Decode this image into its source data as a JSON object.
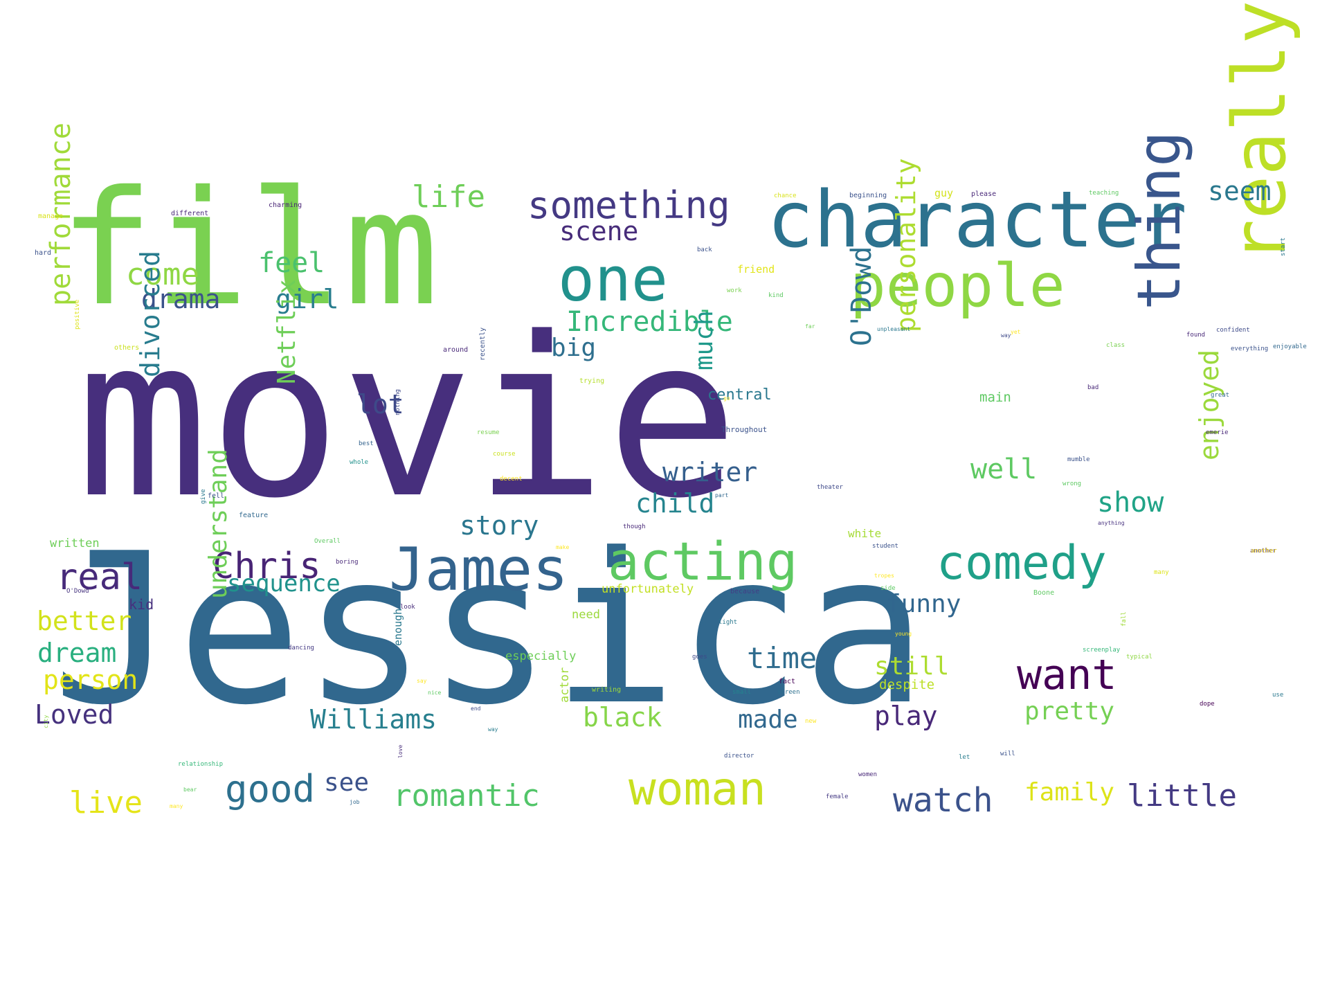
{
  "words": [
    {
      "text": "movie",
      "color": "#472f7d"
    },
    {
      "text": "Jessica",
      "color": "#31688e"
    },
    {
      "text": "film",
      "color": "#7ad151"
    },
    {
      "text": "character",
      "color": "#2c728e"
    },
    {
      "text": "one",
      "color": "#21918c"
    },
    {
      "text": "people",
      "color": "#8fd744"
    },
    {
      "text": "really",
      "color": "#bddf26"
    },
    {
      "text": "thing",
      "color": "#39568c"
    },
    {
      "text": "James",
      "color": "#33638d"
    },
    {
      "text": "acting",
      "color": "#5ec962"
    },
    {
      "text": "comedy",
      "color": "#1fa088"
    },
    {
      "text": "something",
      "color": "#443983"
    },
    {
      "text": "scene",
      "color": "#472c7a"
    },
    {
      "text": "life",
      "color": "#6ece58"
    },
    {
      "text": "seem",
      "color": "#2a788e"
    },
    {
      "text": "come",
      "color": "#8fd744"
    },
    {
      "text": "feel",
      "color": "#4ac16d"
    },
    {
      "text": "drama",
      "color": "#3b528b"
    },
    {
      "text": "girl",
      "color": "#287d8e"
    },
    {
      "text": "Incredible",
      "color": "#35b779"
    },
    {
      "text": "performance",
      "color": "#a0da39"
    },
    {
      "text": "big",
      "color": "#2e6f8e"
    },
    {
      "text": "lot",
      "color": "#3e4a89"
    },
    {
      "text": "divorced",
      "color": "#287c8e"
    },
    {
      "text": "Netflix",
      "color": "#6ece58"
    },
    {
      "text": "much",
      "color": "#1f998a"
    },
    {
      "text": "O'Dowd",
      "color": "#2c728e"
    },
    {
      "text": "personality",
      "color": "#addc30"
    },
    {
      "text": "central",
      "color": "#2a788e"
    },
    {
      "text": "writer",
      "color": "#355f8d"
    },
    {
      "text": "child",
      "color": "#25848e"
    },
    {
      "text": "well",
      "color": "#5ec962"
    },
    {
      "text": "show",
      "color": "#20a386"
    },
    {
      "text": "enjoyed",
      "color": "#9bd93c"
    },
    {
      "text": "story",
      "color": "#2a768e"
    },
    {
      "text": "Chris",
      "color": "#482475"
    },
    {
      "text": "real",
      "color": "#472a7a"
    },
    {
      "text": "sequence",
      "color": "#20928c"
    },
    {
      "text": "funny",
      "color": "#31668e"
    },
    {
      "text": "better",
      "color": "#d2e21b"
    },
    {
      "text": "dream",
      "color": "#29af7f"
    },
    {
      "text": "person",
      "color": "#e2e418"
    },
    {
      "text": "Loved",
      "color": "#46327e"
    },
    {
      "text": "understand",
      "color": "#6ece58"
    },
    {
      "text": "time",
      "color": "#2f6c8e"
    },
    {
      "text": "want",
      "color": "#440154"
    },
    {
      "text": "still",
      "color": "#addc30"
    },
    {
      "text": "Williams",
      "color": "#277f8e"
    },
    {
      "text": "black",
      "color": "#86d549"
    },
    {
      "text": "made",
      "color": "#31688e"
    },
    {
      "text": "play",
      "color": "#482878"
    },
    {
      "text": "pretty",
      "color": "#75d054"
    },
    {
      "text": "good",
      "color": "#2d708e"
    },
    {
      "text": "see",
      "color": "#3b528b"
    },
    {
      "text": "romantic",
      "color": "#52c569"
    },
    {
      "text": "woman",
      "color": "#c8e020"
    },
    {
      "text": "watch",
      "color": "#3b528b"
    },
    {
      "text": "family",
      "color": "#dde318"
    },
    {
      "text": "little",
      "color": "#443a83"
    },
    {
      "text": "live",
      "color": "#e5e419"
    },
    {
      "text": "kid",
      "color": "#46307e"
    },
    {
      "text": "written",
      "color": "#6ece58"
    },
    {
      "text": "white",
      "color": "#a5db36"
    },
    {
      "text": "unfortunately",
      "color": "#c2df23"
    },
    {
      "text": "need",
      "color": "#9bd93c"
    },
    {
      "text": "especially",
      "color": "#6ece58"
    },
    {
      "text": "despite",
      "color": "#bddf26"
    },
    {
      "text": "main",
      "color": "#5ec962"
    },
    {
      "text": "Throughout",
      "color": "#3b528b"
    },
    {
      "text": "actor",
      "color": "#a0da39"
    },
    {
      "text": "enough",
      "color": "#2a788e"
    },
    {
      "text": "charming",
      "color": "#482475"
    },
    {
      "text": "different",
      "color": "#482878"
    },
    {
      "text": "manage",
      "color": "#d8e219"
    },
    {
      "text": "hard",
      "color": "#3b528b"
    },
    {
      "text": "others",
      "color": "#cae11f"
    },
    {
      "text": "positive",
      "color": "#dde318"
    },
    {
      "text": "around",
      "color": "#482878"
    },
    {
      "text": "recently",
      "color": "#3b528b"
    },
    {
      "text": "trying",
      "color": "#b5de2b"
    },
    {
      "text": "resume",
      "color": "#7ad151"
    },
    {
      "text": "course",
      "color": "#cae11f"
    },
    {
      "text": "decent",
      "color": "#fde725"
    },
    {
      "text": "best",
      "color": "#33638d"
    },
    {
      "text": "whole",
      "color": "#21918c"
    },
    {
      "text": "nothing",
      "color": "#3e4989"
    },
    {
      "text": "fell",
      "color": "#3b528b"
    },
    {
      "text": "give",
      "color": "#2a788e"
    },
    {
      "text": "feature",
      "color": "#31688e"
    },
    {
      "text": "Overall",
      "color": "#5ec962"
    },
    {
      "text": "boring",
      "color": "#482878"
    },
    {
      "text": "O'Dowd",
      "color": "#46337f"
    },
    {
      "text": "look",
      "color": "#472c7a"
    },
    {
      "text": "dancing",
      "color": "#443983"
    },
    {
      "text": "relationship",
      "color": "#35b779"
    },
    {
      "text": "bear",
      "color": "#5ec962"
    },
    {
      "text": "many",
      "color": "#fde725"
    },
    {
      "text": "job",
      "color": "#31688e"
    },
    {
      "text": "love",
      "color": "#472d7b"
    },
    {
      "text": "say",
      "color": "#fde725"
    },
    {
      "text": "nice",
      "color": "#5ec962"
    },
    {
      "text": "end",
      "color": "#3e4a89"
    },
    {
      "text": "way",
      "color": "#287c8e"
    },
    {
      "text": "city",
      "color": "#8fd744"
    },
    {
      "text": "writing",
      "color": "#9fda3a"
    },
    {
      "text": "small",
      "color": "#25848e"
    },
    {
      "text": "screen",
      "color": "#2d708e"
    },
    {
      "text": "fact",
      "color": "#440154"
    },
    {
      "text": "new",
      "color": "#fde725"
    },
    {
      "text": "goes",
      "color": "#3e4a89"
    },
    {
      "text": "light",
      "color": "#2a788e"
    },
    {
      "text": "because",
      "color": "#433e85"
    },
    {
      "text": "side",
      "color": "#5ec962"
    },
    {
      "text": "Boone",
      "color": "#5ec962"
    },
    {
      "text": "tropes",
      "color": "#fde725"
    },
    {
      "text": "student",
      "color": "#3b528b"
    },
    {
      "text": "theater",
      "color": "#3e4989"
    },
    {
      "text": "part",
      "color": "#31688e"
    },
    {
      "text": "though",
      "color": "#482878"
    },
    {
      "text": "make",
      "color": "#fde725"
    },
    {
      "text": "director",
      "color": "#3b528b"
    },
    {
      "text": "women",
      "color": "#482878"
    },
    {
      "text": "female",
      "color": "#443983"
    },
    {
      "text": "let",
      "color": "#287d8e"
    },
    {
      "text": "will",
      "color": "#3b528b"
    },
    {
      "text": "screenplay",
      "color": "#35b779"
    },
    {
      "text": "young",
      "color": "#fde725"
    },
    {
      "text": "fall",
      "color": "#a0da39"
    },
    {
      "text": "typical",
      "color": "#8fd744"
    },
    {
      "text": "dope",
      "color": "#440154"
    },
    {
      "text": "use",
      "color": "#2a788e"
    },
    {
      "text": "many",
      "color": "#dde318"
    },
    {
      "text": "another",
      "color": "#472d7b"
    },
    {
      "text": "anything",
      "color": "#46307e"
    },
    {
      "text": "wrong",
      "color": "#5ec962"
    },
    {
      "text": "mumble",
      "color": "#3b528b"
    },
    {
      "text": "emerie",
      "color": "#482878"
    },
    {
      "text": "great",
      "color": "#31688e"
    },
    {
      "text": "bad",
      "color": "#482878"
    },
    {
      "text": "class",
      "color": "#7ad151"
    },
    {
      "text": "everything",
      "color": "#3b528b"
    },
    {
      "text": "yet",
      "color": "#fde725"
    },
    {
      "text": "confident",
      "color": "#3e4a89"
    },
    {
      "text": "way",
      "color": "#3e4989"
    },
    {
      "text": "found",
      "color": "#482878"
    },
    {
      "text": "enjoyable",
      "color": "#31688e"
    },
    {
      "text": "start",
      "color": "#2a788e"
    },
    {
      "text": "unpleasant",
      "color": "#2a788e"
    },
    {
      "text": "far",
      "color": "#6ece58"
    },
    {
      "text": "work",
      "color": "#7ad151"
    },
    {
      "text": "friend",
      "color": "#e2e418"
    },
    {
      "text": "kind",
      "color": "#5ec962"
    },
    {
      "text": "back",
      "color": "#3b528b"
    },
    {
      "text": "chance",
      "color": "#d8e219"
    },
    {
      "text": "beginning",
      "color": "#3b528b"
    },
    {
      "text": "guy",
      "color": "#d2e21b"
    },
    {
      "text": "please",
      "color": "#482878"
    },
    {
      "text": "teaching",
      "color": "#5ec962"
    },
    {
      "text": "go",
      "color": "#fde725"
    },
    {
      "text": "another",
      "color": "#fde725"
    }
  ]
}
